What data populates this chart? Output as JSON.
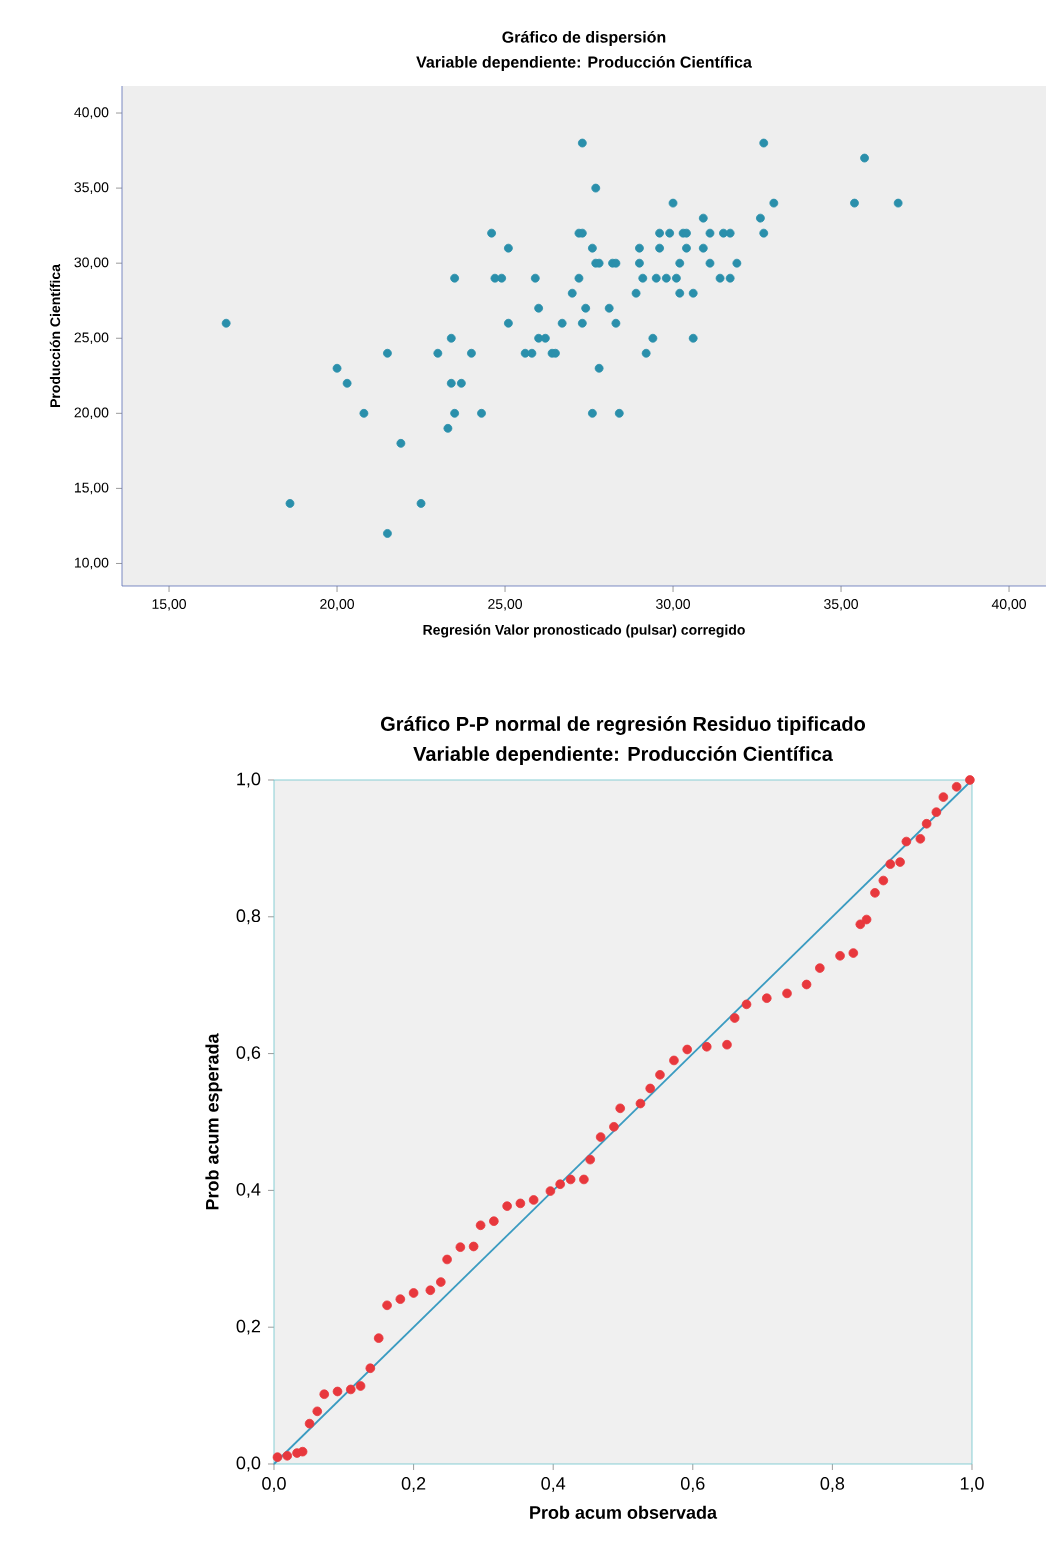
{
  "chart_data": [
    {
      "type": "scatter",
      "title": "Gráfico de dispersión",
      "subtitle": "Variable dependiente:  Producción Científica",
      "xlabel": "Regresión Valor pronosticado (pulsar) corregido",
      "ylabel": "Producción Científica",
      "color": "#2a8fab",
      "marker": "circle",
      "xlim": [
        13.6,
        41.1
      ],
      "ylim": [
        8.5,
        41.8
      ],
      "xticks": [
        {
          "value": 15,
          "label": "15,00"
        },
        {
          "value": 20,
          "label": "20,00"
        },
        {
          "value": 25,
          "label": "25,00"
        },
        {
          "value": 30,
          "label": "30,00"
        },
        {
          "value": 35,
          "label": "35,00"
        },
        {
          "value": 40,
          "label": "40,00"
        }
      ],
      "yticks": [
        {
          "value": 10,
          "label": "10,00"
        },
        {
          "value": 15,
          "label": "15,00"
        },
        {
          "value": 20,
          "label": "20,00"
        },
        {
          "value": 25,
          "label": "25,00"
        },
        {
          "value": 30,
          "label": "30,00"
        },
        {
          "value": 35,
          "label": "35,00"
        },
        {
          "value": 40,
          "label": "40,00"
        }
      ],
      "x": [
        16.7,
        27.3,
        32.7,
        35.7,
        27.7,
        30.0,
        33.0,
        35.4,
        36.7,
        30.9,
        32.6,
        24.6,
        27.2,
        27.3,
        29.6,
        29.9,
        30.3,
        30.4,
        31.1,
        31.5,
        31.7,
        32.7,
        25.1,
        27.6,
        29.0,
        29.6,
        30.4,
        30.9,
        27.7,
        27.8,
        28.2,
        28.3,
        29.0,
        30.2,
        31.1,
        31.9,
        23.5,
        24.7,
        24.9,
        25.9,
        27.2,
        29.1,
        29.5,
        29.8,
        30.1,
        31.4,
        31.7,
        27.0,
        28.9,
        30.2,
        30.6,
        26.0,
        27.4,
        28.1,
        25.1,
        26.7,
        27.3,
        28.3,
        23.4,
        26.0,
        26.2,
        29.4,
        30.6,
        21.5,
        23.0,
        24.0,
        25.6,
        25.8,
        26.4,
        26.5,
        29.2,
        20.0,
        27.8,
        20.3,
        23.4,
        23.7,
        20.8,
        23.5,
        24.3,
        27.6,
        28.4,
        23.3,
        21.9,
        18.6,
        22.5,
        21.5
      ],
      "values": [
        26,
        38,
        38,
        37,
        35,
        34,
        34,
        34,
        34,
        33,
        33,
        32,
        32,
        32,
        32,
        32,
        32,
        32,
        32,
        32,
        32,
        32,
        31,
        31,
        31,
        31,
        31,
        31,
        30,
        30,
        30,
        30,
        30,
        30,
        30,
        30,
        29,
        29,
        29,
        29,
        29,
        29,
        29,
        29,
        29,
        29,
        29,
        28,
        28,
        28,
        28,
        27,
        27,
        27,
        26,
        26,
        26,
        26,
        25,
        25,
        25,
        25,
        25,
        24,
        24,
        24,
        24,
        24,
        24,
        24,
        24,
        23,
        23,
        22,
        22,
        22,
        20,
        20,
        20,
        20,
        20,
        19,
        18,
        14,
        14,
        12
      ]
    },
    {
      "type": "scatter",
      "title": "Gráfico P-P normal de regresión Residuo tipificado",
      "subtitle": "Variable dependiente:  Producción Científica",
      "xlabel": "Prob acum observada",
      "ylabel": "Prob acum esperada",
      "xlim": [
        0,
        1
      ],
      "ylim": [
        0,
        1
      ],
      "xticks": [
        {
          "value": 0,
          "label": "0,0"
        },
        {
          "value": 0.2,
          "label": "0,2"
        },
        {
          "value": 0.4,
          "label": "0,4"
        },
        {
          "value": 0.6,
          "label": "0,6"
        },
        {
          "value": 0.8,
          "label": "0,8"
        },
        {
          "value": 1,
          "label": "1,0"
        }
      ],
      "yticks": [
        {
          "value": 0,
          "label": "0,0"
        },
        {
          "value": 0.2,
          "label": "0,2"
        },
        {
          "value": 0.4,
          "label": "0,4"
        },
        {
          "value": 0.6,
          "label": "0,6"
        },
        {
          "value": 0.8,
          "label": "0,8"
        },
        {
          "value": 1,
          "label": "1,0"
        }
      ],
      "series": [
        {
          "type": "scatter",
          "marker": "circle",
          "color": "#e8383d",
          "x": [
            0.005,
            0.019,
            0.033,
            0.041,
            0.051,
            0.062,
            0.072,
            0.091,
            0.11,
            0.124,
            0.138,
            0.15,
            0.162,
            0.181,
            0.2,
            0.224,
            0.239,
            0.248,
            0.267,
            0.286,
            0.296,
            0.315,
            0.334,
            0.353,
            0.372,
            0.396,
            0.41,
            0.425,
            0.444,
            0.453,
            0.468,
            0.487,
            0.496,
            0.525,
            0.539,
            0.553,
            0.573,
            0.592,
            0.62,
            0.649,
            0.66,
            0.677,
            0.706,
            0.735,
            0.763,
            0.782,
            0.811,
            0.83,
            0.84,
            0.849,
            0.861,
            0.873,
            0.883,
            0.897,
            0.906,
            0.926,
            0.935,
            0.949,
            0.959,
            0.978,
            0.997
          ],
          "values": [
            0.01,
            0.012,
            0.016,
            0.018,
            0.059,
            0.077,
            0.102,
            0.106,
            0.109,
            0.114,
            0.14,
            0.184,
            0.232,
            0.241,
            0.25,
            0.254,
            0.266,
            0.299,
            0.317,
            0.318,
            0.349,
            0.355,
            0.377,
            0.381,
            0.386,
            0.399,
            0.409,
            0.416,
            0.416,
            0.445,
            0.478,
            0.493,
            0.52,
            0.527,
            0.549,
            0.569,
            0.59,
            0.606,
            0.61,
            0.613,
            0.652,
            0.672,
            0.681,
            0.688,
            0.701,
            0.725,
            0.743,
            0.747,
            0.789,
            0.796,
            0.835,
            0.853,
            0.877,
            0.88,
            0.91,
            0.914,
            0.936,
            0.953,
            0.975,
            0.99,
            1.0
          ]
        },
        {
          "type": "line",
          "marker": "none",
          "color": "#3a9bc1",
          "x": [
            0,
            1
          ],
          "values": [
            0,
            1
          ]
        }
      ]
    }
  ]
}
